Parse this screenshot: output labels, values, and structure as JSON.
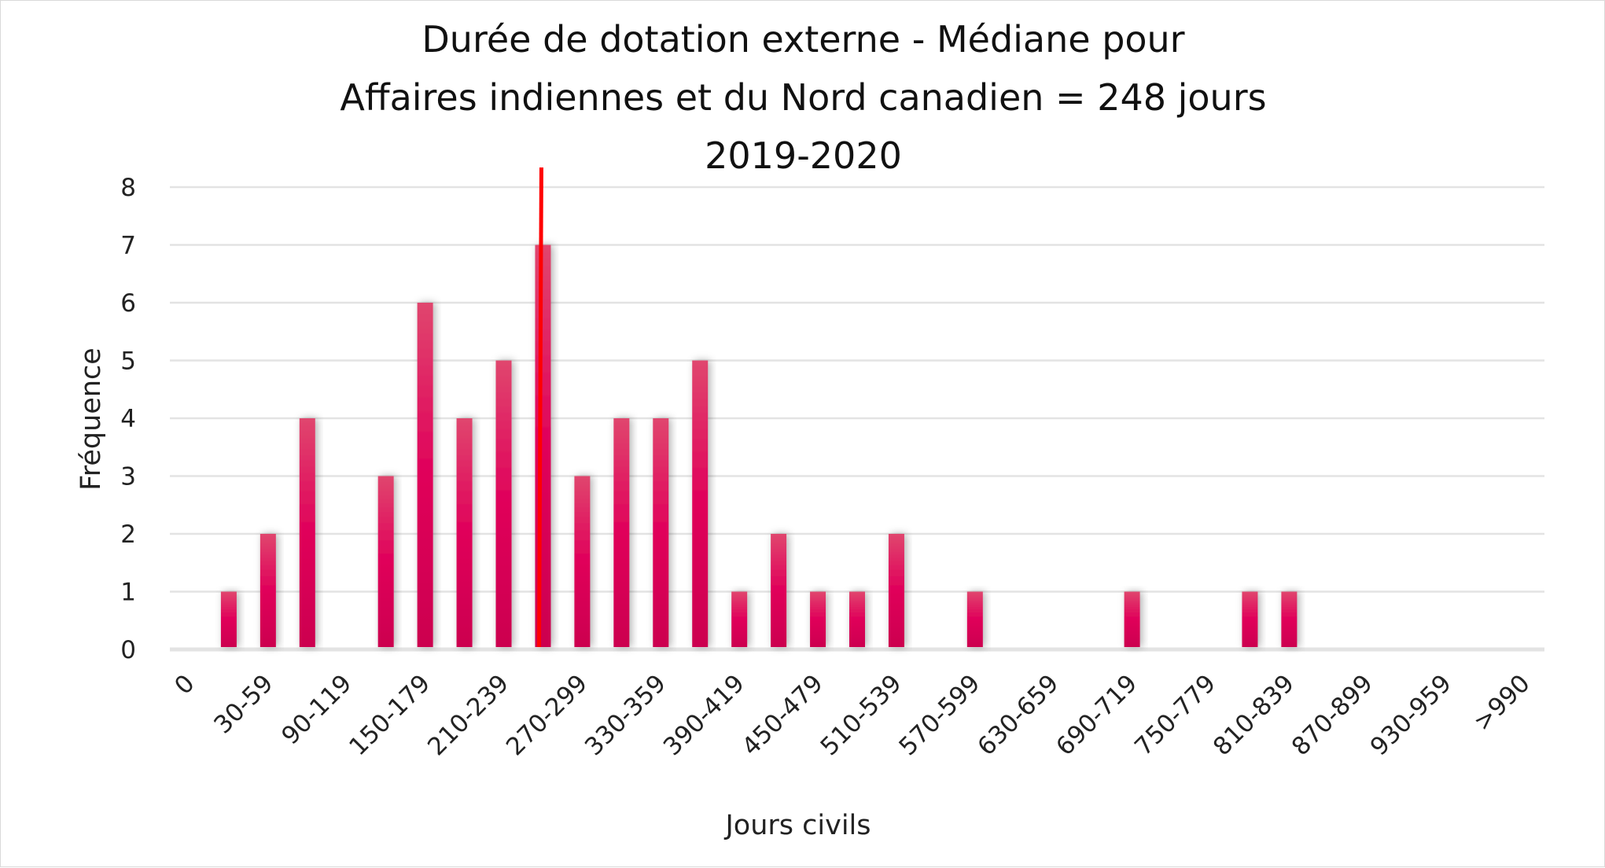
{
  "chart_data": {
    "type": "bar",
    "title_lines": [
      "Durée de dotation externe - Médiane pour",
      "Affaires indiennes et du Nord canadien = 248 jours",
      "2019-2020"
    ],
    "xlabel": "Jours civils",
    "ylabel": "Fréquence",
    "ylim": [
      0,
      8
    ],
    "yticks": [
      "0",
      "1",
      "2",
      "3",
      "4",
      "5",
      "6",
      "7",
      "8"
    ],
    "grid": true,
    "categories": [
      "0",
      "",
      "30-59",
      "",
      "90-119",
      "",
      "150-179",
      "",
      "210-239",
      "",
      "270-299",
      "",
      "330-359",
      "",
      "390-419",
      "",
      "450-479",
      "",
      "510-539",
      "",
      "570-599",
      "",
      "630-659",
      "",
      "690-719",
      "",
      "750-779",
      "",
      "810-839",
      "",
      "870-899",
      "",
      "930-959",
      "",
      ">990"
    ],
    "values": [
      0,
      1,
      2,
      4,
      0,
      3,
      6,
      4,
      5,
      7,
      3,
      4,
      4,
      5,
      1,
      2,
      1,
      1,
      2,
      0,
      1,
      0,
      0,
      0,
      1,
      0,
      0,
      1,
      1,
      0,
      0,
      0,
      0,
      0,
      0
    ],
    "median_marker": {
      "value_days": 248,
      "category_index": 9,
      "color": "#ff0000"
    },
    "bar_color_top": "#e0466e",
    "bar_color_mid": "#e0005a",
    "bar_color_bottom": "#cc004f"
  }
}
